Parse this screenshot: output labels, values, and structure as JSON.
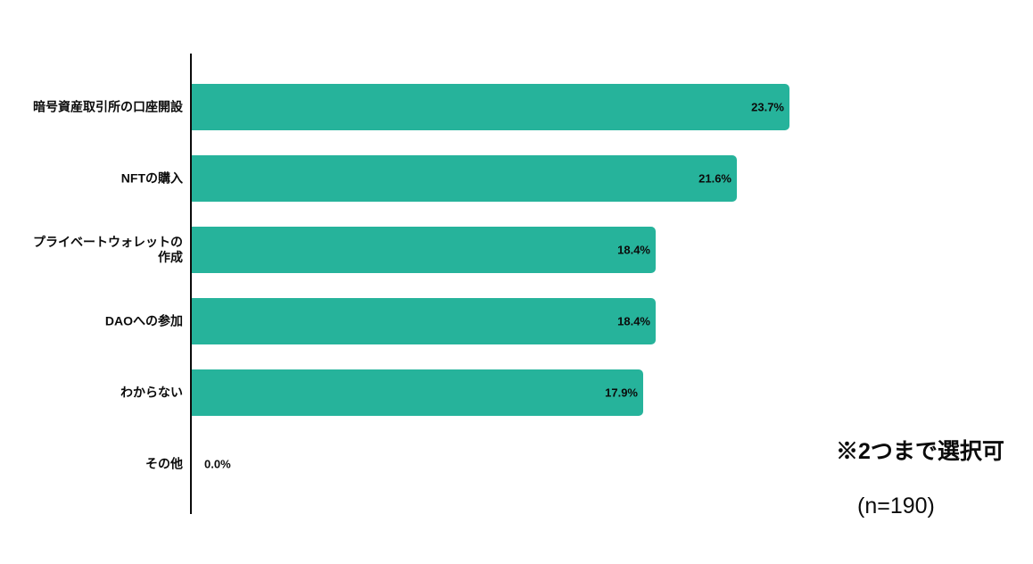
{
  "chart_data": {
    "type": "bar",
    "orientation": "horizontal",
    "title": "",
    "xlabel": "",
    "ylabel": "",
    "xlim": [
      0,
      25
    ],
    "grid": false,
    "legend": false,
    "bar_color": "#26b39b",
    "categories": [
      "暗号資産取引所の口座開設",
      "NFTの購入",
      "プライベートウォレットの\n作成",
      "DAOへの参加",
      "わからない",
      "その他"
    ],
    "values": [
      23.7,
      21.6,
      18.4,
      18.4,
      17.9,
      0.0
    ],
    "value_labels": [
      "23.7%",
      "21.6%",
      "18.4%",
      "18.4%",
      "17.9%",
      "0.0%"
    ]
  },
  "annotations": {
    "note": "※2つまで選択可",
    "sample_size": "(n=190)"
  }
}
